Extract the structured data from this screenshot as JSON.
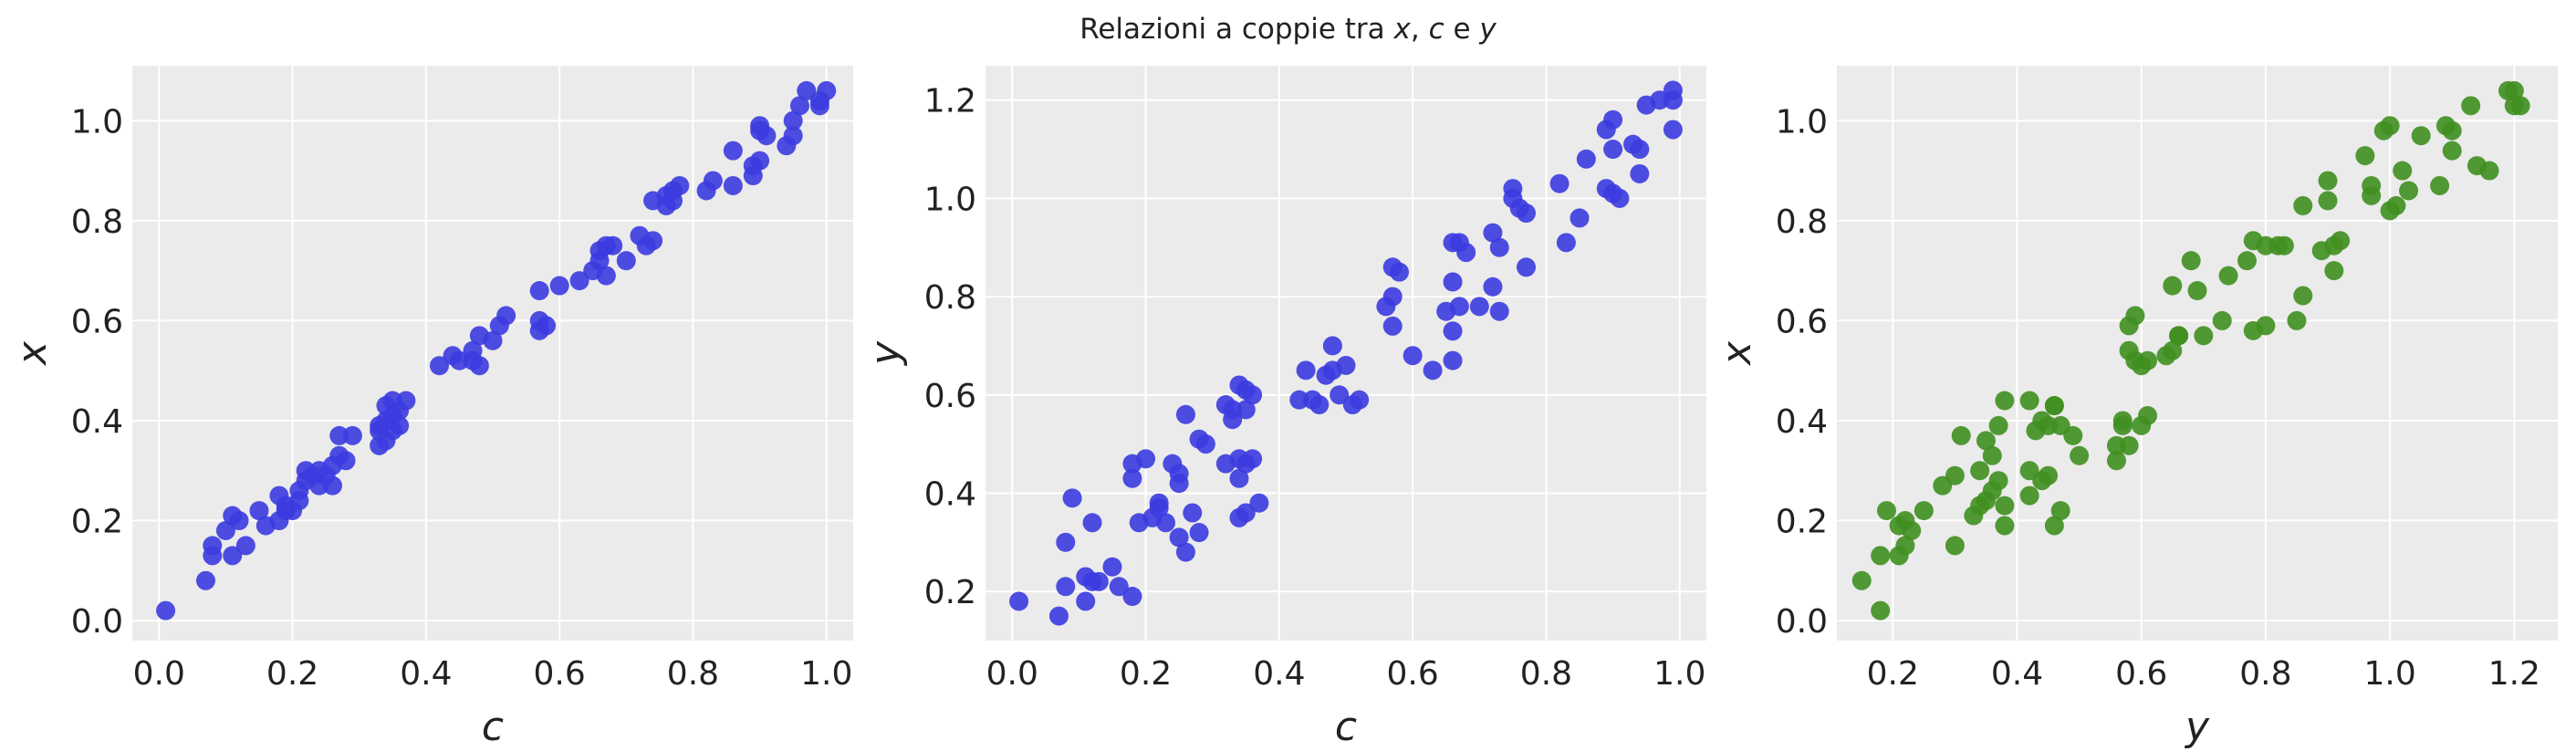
{
  "figure": {
    "title_parts": [
      "Relazioni a coppie tra ",
      "x",
      ", ",
      "c",
      " e ",
      "y"
    ],
    "background": "#ffffff",
    "panel_background": "#ebebeb",
    "grid_color": "#ffffff"
  },
  "chart_data": [
    {
      "type": "scatter",
      "title": "",
      "xlabel": "c",
      "ylabel": "x",
      "xlim": [
        -0.04,
        1.04
      ],
      "ylim": [
        -0.04,
        1.11
      ],
      "xticks": [
        0.0,
        0.2,
        0.4,
        0.6,
        0.8,
        1.0
      ],
      "yticks": [
        0.0,
        0.2,
        0.4,
        0.6,
        0.8,
        1.0
      ],
      "xtick_labels": [
        "0.0",
        "0.2",
        "0.4",
        "0.6",
        "0.8",
        "1.0"
      ],
      "ytick_labels": [
        "0.0",
        "0.2",
        "0.4",
        "0.6",
        "0.8",
        "1.0"
      ],
      "grid": true,
      "color": "#3b3be0",
      "points": [
        [
          0.01,
          0.02
        ],
        [
          0.07,
          0.08
        ],
        [
          0.08,
          0.13
        ],
        [
          0.08,
          0.15
        ],
        [
          0.1,
          0.18
        ],
        [
          0.11,
          0.13
        ],
        [
          0.11,
          0.21
        ],
        [
          0.12,
          0.2
        ],
        [
          0.13,
          0.15
        ],
        [
          0.15,
          0.22
        ],
        [
          0.16,
          0.19
        ],
        [
          0.18,
          0.2
        ],
        [
          0.18,
          0.25
        ],
        [
          0.19,
          0.22
        ],
        [
          0.19,
          0.23
        ],
        [
          0.2,
          0.22
        ],
        [
          0.21,
          0.24
        ],
        [
          0.21,
          0.26
        ],
        [
          0.22,
          0.28
        ],
        [
          0.22,
          0.3
        ],
        [
          0.23,
          0.29
        ],
        [
          0.24,
          0.27
        ],
        [
          0.24,
          0.3
        ],
        [
          0.25,
          0.29
        ],
        [
          0.26,
          0.27
        ],
        [
          0.26,
          0.31
        ],
        [
          0.27,
          0.33
        ],
        [
          0.27,
          0.37
        ],
        [
          0.28,
          0.32
        ],
        [
          0.29,
          0.37
        ],
        [
          0.33,
          0.35
        ],
        [
          0.33,
          0.38
        ],
        [
          0.33,
          0.39
        ],
        [
          0.34,
          0.36
        ],
        [
          0.34,
          0.4
        ],
        [
          0.34,
          0.43
        ],
        [
          0.35,
          0.38
        ],
        [
          0.35,
          0.41
        ],
        [
          0.35,
          0.44
        ],
        [
          0.36,
          0.39
        ],
        [
          0.36,
          0.42
        ],
        [
          0.37,
          0.44
        ],
        [
          0.42,
          0.51
        ],
        [
          0.44,
          0.53
        ],
        [
          0.45,
          0.52
        ],
        [
          0.47,
          0.54
        ],
        [
          0.47,
          0.52
        ],
        [
          0.48,
          0.51
        ],
        [
          0.48,
          0.57
        ],
        [
          0.5,
          0.56
        ],
        [
          0.51,
          0.59
        ],
        [
          0.52,
          0.61
        ],
        [
          0.57,
          0.58
        ],
        [
          0.57,
          0.6
        ],
        [
          0.58,
          0.59
        ],
        [
          0.57,
          0.66
        ],
        [
          0.6,
          0.67
        ],
        [
          0.63,
          0.68
        ],
        [
          0.65,
          0.7
        ],
        [
          0.66,
          0.72
        ],
        [
          0.66,
          0.74
        ],
        [
          0.67,
          0.69
        ],
        [
          0.67,
          0.75
        ],
        [
          0.68,
          0.75
        ],
        [
          0.7,
          0.72
        ],
        [
          0.72,
          0.77
        ],
        [
          0.73,
          0.75
        ],
        [
          0.74,
          0.76
        ],
        [
          0.74,
          0.84
        ],
        [
          0.76,
          0.83
        ],
        [
          0.76,
          0.85
        ],
        [
          0.77,
          0.84
        ],
        [
          0.77,
          0.86
        ],
        [
          0.78,
          0.87
        ],
        [
          0.82,
          0.86
        ],
        [
          0.83,
          0.88
        ],
        [
          0.86,
          0.87
        ],
        [
          0.86,
          0.94
        ],
        [
          0.89,
          0.89
        ],
        [
          0.89,
          0.91
        ],
        [
          0.9,
          0.92
        ],
        [
          0.9,
          0.98
        ],
        [
          0.9,
          0.99
        ],
        [
          0.91,
          0.97
        ],
        [
          0.94,
          0.95
        ],
        [
          0.95,
          0.97
        ],
        [
          0.95,
          1.0
        ],
        [
          0.96,
          1.03
        ],
        [
          0.97,
          1.06
        ],
        [
          0.99,
          1.03
        ],
        [
          0.99,
          1.04
        ],
        [
          1.0,
          1.06
        ]
      ]
    },
    {
      "type": "scatter",
      "title": "",
      "xlabel": "c",
      "ylabel": "y",
      "xlim": [
        -0.04,
        1.04
      ],
      "ylim": [
        0.1,
        1.27
      ],
      "xticks": [
        0.0,
        0.2,
        0.4,
        0.6,
        0.8,
        1.0
      ],
      "yticks": [
        0.2,
        0.4,
        0.6,
        0.8,
        1.0,
        1.2
      ],
      "xtick_labels": [
        "0.0",
        "0.2",
        "0.4",
        "0.6",
        "0.8",
        "1.0"
      ],
      "ytick_labels": [
        "0.2",
        "0.4",
        "0.6",
        "0.8",
        "1.0",
        "1.2"
      ],
      "grid": true,
      "color": "#3b3be0",
      "points": [
        [
          0.01,
          0.18
        ],
        [
          0.07,
          0.15
        ],
        [
          0.08,
          0.3
        ],
        [
          0.08,
          0.21
        ],
        [
          0.09,
          0.39
        ],
        [
          0.11,
          0.18
        ],
        [
          0.11,
          0.23
        ],
        [
          0.12,
          0.34
        ],
        [
          0.12,
          0.22
        ],
        [
          0.13,
          0.22
        ],
        [
          0.15,
          0.25
        ],
        [
          0.16,
          0.21
        ],
        [
          0.18,
          0.19
        ],
        [
          0.18,
          0.43
        ],
        [
          0.18,
          0.46
        ],
        [
          0.19,
          0.34
        ],
        [
          0.2,
          0.47
        ],
        [
          0.21,
          0.35
        ],
        [
          0.22,
          0.37
        ],
        [
          0.22,
          0.38
        ],
        [
          0.23,
          0.34
        ],
        [
          0.24,
          0.46
        ],
        [
          0.25,
          0.44
        ],
        [
          0.25,
          0.42
        ],
        [
          0.25,
          0.31
        ],
        [
          0.26,
          0.28
        ],
        [
          0.26,
          0.56
        ],
        [
          0.27,
          0.36
        ],
        [
          0.28,
          0.32
        ],
        [
          0.28,
          0.51
        ],
        [
          0.29,
          0.5
        ],
        [
          0.32,
          0.46
        ],
        [
          0.32,
          0.58
        ],
        [
          0.33,
          0.57
        ],
        [
          0.33,
          0.55
        ],
        [
          0.34,
          0.35
        ],
        [
          0.34,
          0.43
        ],
        [
          0.34,
          0.47
        ],
        [
          0.34,
          0.62
        ],
        [
          0.35,
          0.46
        ],
        [
          0.35,
          0.61
        ],
        [
          0.35,
          0.57
        ],
        [
          0.35,
          0.36
        ],
        [
          0.36,
          0.47
        ],
        [
          0.36,
          0.6
        ],
        [
          0.37,
          0.38
        ],
        [
          0.43,
          0.59
        ],
        [
          0.44,
          0.65
        ],
        [
          0.45,
          0.59
        ],
        [
          0.46,
          0.58
        ],
        [
          0.47,
          0.64
        ],
        [
          0.48,
          0.65
        ],
        [
          0.48,
          0.7
        ],
        [
          0.49,
          0.6
        ],
        [
          0.5,
          0.66
        ],
        [
          0.51,
          0.58
        ],
        [
          0.52,
          0.59
        ],
        [
          0.56,
          0.78
        ],
        [
          0.57,
          0.8
        ],
        [
          0.57,
          0.74
        ],
        [
          0.57,
          0.86
        ],
        [
          0.58,
          0.85
        ],
        [
          0.6,
          0.68
        ],
        [
          0.63,
          0.65
        ],
        [
          0.65,
          0.77
        ],
        [
          0.66,
          0.67
        ],
        [
          0.66,
          0.73
        ],
        [
          0.66,
          0.83
        ],
        [
          0.66,
          0.91
        ],
        [
          0.67,
          0.78
        ],
        [
          0.67,
          0.91
        ],
        [
          0.68,
          0.89
        ],
        [
          0.7,
          0.78
        ],
        [
          0.72,
          0.82
        ],
        [
          0.72,
          0.93
        ],
        [
          0.73,
          0.77
        ],
        [
          0.73,
          0.9
        ],
        [
          0.75,
          1.0
        ],
        [
          0.75,
          1.02
        ],
        [
          0.76,
          0.98
        ],
        [
          0.77,
          0.86
        ],
        [
          0.77,
          0.97
        ],
        [
          0.82,
          1.03
        ],
        [
          0.83,
          0.91
        ],
        [
          0.85,
          0.96
        ],
        [
          0.86,
          1.08
        ],
        [
          0.89,
          1.14
        ],
        [
          0.89,
          1.02
        ],
        [
          0.9,
          1.16
        ],
        [
          0.9,
          1.1
        ],
        [
          0.9,
          1.01
        ],
        [
          0.91,
          1.0
        ],
        [
          0.93,
          1.11
        ],
        [
          0.94,
          1.05
        ],
        [
          0.94,
          1.1
        ],
        [
          0.95,
          1.19
        ],
        [
          0.97,
          1.2
        ],
        [
          0.99,
          1.22
        ],
        [
          0.99,
          1.14
        ],
        [
          0.99,
          1.2
        ]
      ]
    },
    {
      "type": "scatter",
      "title": "",
      "xlabel": "y",
      "ylabel": "x",
      "xlim": [
        0.11,
        1.27
      ],
      "ylim": [
        -0.04,
        1.11
      ],
      "xticks": [
        0.2,
        0.4,
        0.6,
        0.8,
        1.0,
        1.2
      ],
      "yticks": [
        0.0,
        0.2,
        0.4,
        0.6,
        0.8,
        1.0
      ],
      "xtick_labels": [
        "0.2",
        "0.4",
        "0.6",
        "0.8",
        "1.0",
        "1.2"
      ],
      "ytick_labels": [
        "0.0",
        "0.2",
        "0.4",
        "0.6",
        "0.8",
        "1.0"
      ],
      "grid": true,
      "color": "#3f8f1f",
      "points": [
        [
          0.15,
          0.08
        ],
        [
          0.18,
          0.13
        ],
        [
          0.18,
          0.02
        ],
        [
          0.19,
          0.22
        ],
        [
          0.21,
          0.19
        ],
        [
          0.21,
          0.13
        ],
        [
          0.22,
          0.2
        ],
        [
          0.22,
          0.15
        ],
        [
          0.23,
          0.18
        ],
        [
          0.25,
          0.22
        ],
        [
          0.28,
          0.27
        ],
        [
          0.3,
          0.15
        ],
        [
          0.3,
          0.29
        ],
        [
          0.31,
          0.37
        ],
        [
          0.33,
          0.21
        ],
        [
          0.34,
          0.23
        ],
        [
          0.34,
          0.3
        ],
        [
          0.35,
          0.36
        ],
        [
          0.35,
          0.24
        ],
        [
          0.36,
          0.33
        ],
        [
          0.36,
          0.26
        ],
        [
          0.37,
          0.28
        ],
        [
          0.37,
          0.39
        ],
        [
          0.38,
          0.23
        ],
        [
          0.38,
          0.44
        ],
        [
          0.38,
          0.19
        ],
        [
          0.42,
          0.3
        ],
        [
          0.42,
          0.44
        ],
        [
          0.42,
          0.25
        ],
        [
          0.43,
          0.38
        ],
        [
          0.44,
          0.4
        ],
        [
          0.44,
          0.28
        ],
        [
          0.45,
          0.29
        ],
        [
          0.45,
          0.39
        ],
        [
          0.46,
          0.43
        ],
        [
          0.46,
          0.19
        ],
        [
          0.46,
          0.43
        ],
        [
          0.47,
          0.22
        ],
        [
          0.47,
          0.39
        ],
        [
          0.49,
          0.37
        ],
        [
          0.5,
          0.33
        ],
        [
          0.56,
          0.35
        ],
        [
          0.56,
          0.32
        ],
        [
          0.57,
          0.39
        ],
        [
          0.57,
          0.4
        ],
        [
          0.58,
          0.54
        ],
        [
          0.58,
          0.59
        ],
        [
          0.58,
          0.35
        ],
        [
          0.59,
          0.61
        ],
        [
          0.59,
          0.52
        ],
        [
          0.6,
          0.51
        ],
        [
          0.6,
          0.39
        ],
        [
          0.61,
          0.41
        ],
        [
          0.61,
          0.52
        ],
        [
          0.64,
          0.53
        ],
        [
          0.65,
          0.54
        ],
        [
          0.65,
          0.67
        ],
        [
          0.66,
          0.57
        ],
        [
          0.66,
          0.57
        ],
        [
          0.68,
          0.72
        ],
        [
          0.69,
          0.66
        ],
        [
          0.7,
          0.57
        ],
        [
          0.73,
          0.6
        ],
        [
          0.74,
          0.69
        ],
        [
          0.77,
          0.72
        ],
        [
          0.78,
          0.76
        ],
        [
          0.78,
          0.58
        ],
        [
          0.8,
          0.59
        ],
        [
          0.8,
          0.75
        ],
        [
          0.82,
          0.75
        ],
        [
          0.83,
          0.75
        ],
        [
          0.85,
          0.6
        ],
        [
          0.86,
          0.83
        ],
        [
          0.86,
          0.65
        ],
        [
          0.89,
          0.74
        ],
        [
          0.9,
          0.84
        ],
        [
          0.9,
          0.88
        ],
        [
          0.91,
          0.7
        ],
        [
          0.91,
          0.75
        ],
        [
          0.92,
          0.76
        ],
        [
          0.96,
          0.93
        ],
        [
          0.97,
          0.87
        ],
        [
          0.97,
          0.85
        ],
        [
          0.99,
          0.98
        ],
        [
          1.0,
          0.82
        ],
        [
          1.0,
          0.99
        ],
        [
          1.01,
          0.83
        ],
        [
          1.02,
          0.9
        ],
        [
          1.03,
          0.86
        ],
        [
          1.05,
          0.97
        ],
        [
          1.08,
          0.87
        ],
        [
          1.09,
          0.99
        ],
        [
          1.1,
          0.98
        ],
        [
          1.1,
          0.94
        ],
        [
          1.13,
          1.03
        ],
        [
          1.14,
          0.91
        ],
        [
          1.16,
          0.9
        ],
        [
          1.19,
          1.06
        ],
        [
          1.2,
          1.03
        ],
        [
          1.2,
          1.06
        ],
        [
          1.21,
          1.03
        ]
      ]
    }
  ]
}
